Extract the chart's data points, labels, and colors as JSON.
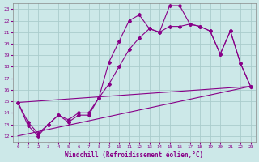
{
  "xlabel": "Windchill (Refroidissement éolien,°C)",
  "bg_color": "#cce8e8",
  "grid_color": "#aacccc",
  "line_color": "#880088",
  "xlim": [
    -0.5,
    23.5
  ],
  "ylim": [
    11.5,
    23.5
  ],
  "yticks": [
    12,
    13,
    14,
    15,
    16,
    17,
    18,
    19,
    20,
    21,
    22,
    23
  ],
  "xticks": [
    0,
    1,
    2,
    3,
    4,
    5,
    6,
    7,
    8,
    9,
    10,
    11,
    12,
    13,
    14,
    15,
    16,
    17,
    18,
    19,
    20,
    21,
    22,
    23
  ],
  "line1_x": [
    0,
    1,
    2,
    3,
    4,
    5,
    6,
    7,
    8,
    9,
    10,
    11,
    12,
    13,
    14,
    15,
    16,
    17,
    18,
    19,
    20,
    21,
    22,
    23
  ],
  "line1_y": [
    14.9,
    12.9,
    12.0,
    13.0,
    13.8,
    13.2,
    13.8,
    13.8,
    15.3,
    18.4,
    20.2,
    22.0,
    22.5,
    21.3,
    21.0,
    23.3,
    23.3,
    21.7,
    21.5,
    21.1,
    19.1,
    21.1,
    18.3,
    16.3
  ],
  "line2_x": [
    0,
    1,
    2,
    3,
    4,
    5,
    6,
    7,
    8,
    9,
    10,
    11,
    12,
    13,
    14,
    15,
    16,
    17,
    18,
    19,
    20,
    21,
    22,
    23
  ],
  "line2_y": [
    14.9,
    13.2,
    12.2,
    13.0,
    13.8,
    13.4,
    14.0,
    14.0,
    15.3,
    16.5,
    18.0,
    19.5,
    20.5,
    21.3,
    21.0,
    21.5,
    21.5,
    21.7,
    21.5,
    21.1,
    19.1,
    21.1,
    18.3,
    16.3
  ],
  "line3_x": [
    0,
    23
  ],
  "line3_y": [
    12.0,
    16.3
  ],
  "line4_x": [
    0,
    23
  ],
  "line4_y": [
    14.9,
    16.3
  ]
}
